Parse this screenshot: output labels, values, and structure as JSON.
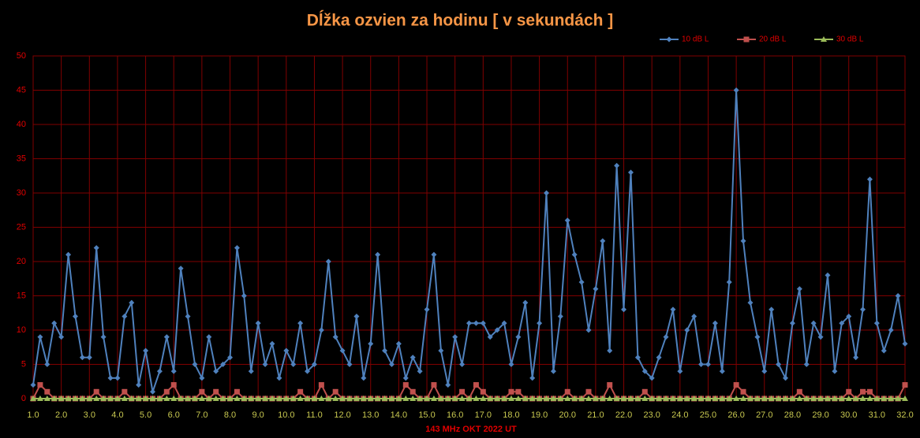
{
  "chart_data": {
    "type": "line",
    "title": "Dĺžka ozvien za hodinu [ v sekundách ]",
    "x_label": "143 MHz OKT  2022  UT",
    "legend": "top-right",
    "grid": true,
    "xlim": [
      1,
      32
    ],
    "ylim": [
      0,
      50
    ],
    "yticks": [
      0,
      5,
      10,
      15,
      20,
      25,
      30,
      35,
      40,
      45,
      50
    ],
    "xticks": [
      {
        "value": 1,
        "label": "1.0"
      },
      {
        "value": 2,
        "label": "2.0"
      },
      {
        "value": 3,
        "label": "3.0"
      },
      {
        "value": 4,
        "label": "4.0"
      },
      {
        "value": 5,
        "label": "5.0"
      },
      {
        "value": 6,
        "label": "6.0"
      },
      {
        "value": 7,
        "label": "7.0"
      },
      {
        "value": 8,
        "label": "8.0"
      },
      {
        "value": 9,
        "label": "9.0"
      },
      {
        "value": 10,
        "label": "10.0"
      },
      {
        "value": 11,
        "label": "11.0"
      },
      {
        "value": 12,
        "label": "12.0"
      },
      {
        "value": 13,
        "label": "13.0"
      },
      {
        "value": 14,
        "label": "14.0"
      },
      {
        "value": 15,
        "label": "15.0"
      },
      {
        "value": 16,
        "label": "16.0"
      },
      {
        "value": 17,
        "label": "17.0"
      },
      {
        "value": 18,
        "label": "18.0"
      },
      {
        "value": 19,
        "label": "19.0"
      },
      {
        "value": 20,
        "label": "20.0"
      },
      {
        "value": 21,
        "label": "21.0"
      },
      {
        "value": 22,
        "label": "22.0"
      },
      {
        "value": 23,
        "label": "23.0"
      },
      {
        "value": 24,
        "label": "24.0"
      },
      {
        "value": 25,
        "label": "25.0"
      },
      {
        "value": 26,
        "label": "26.0"
      },
      {
        "value": 27,
        "label": "27.0"
      },
      {
        "value": 28,
        "label": "28.0"
      },
      {
        "value": 29,
        "label": "29.0"
      },
      {
        "value": 30,
        "label": "30.0"
      },
      {
        "value": 31,
        "label": "31.0"
      },
      {
        "value": 32,
        "label": "32.0"
      }
    ],
    "x": [
      1,
      1.25,
      1.5,
      1.75,
      2,
      2.25,
      2.5,
      2.75,
      3,
      3.25,
      3.5,
      3.75,
      4,
      4.25,
      4.5,
      4.75,
      5,
      5.25,
      5.5,
      5.75,
      6,
      6.25,
      6.5,
      6.75,
      7,
      7.25,
      7.5,
      7.75,
      8,
      8.25,
      8.5,
      8.75,
      9,
      9.25,
      9.5,
      9.75,
      10,
      10.25,
      10.5,
      10.75,
      11,
      11.25,
      11.5,
      11.75,
      12,
      12.25,
      12.5,
      12.75,
      13,
      13.25,
      13.5,
      13.75,
      14,
      14.25,
      14.5,
      14.75,
      15,
      15.25,
      15.5,
      15.75,
      16,
      16.25,
      16.5,
      16.75,
      17,
      17.25,
      17.5,
      17.75,
      18,
      18.25,
      18.5,
      18.75,
      19,
      19.25,
      19.5,
      19.75,
      20,
      20.25,
      20.5,
      20.75,
      21,
      21.25,
      21.5,
      21.75,
      22,
      22.25,
      22.5,
      22.75,
      23,
      23.25,
      23.5,
      23.75,
      24,
      24.25,
      24.5,
      24.75,
      25,
      25.25,
      25.5,
      25.75,
      26,
      26.25,
      26.5,
      26.75,
      27,
      27.25,
      27.5,
      27.75,
      28,
      28.25,
      28.5,
      28.75,
      29,
      29.25,
      29.5,
      29.75,
      30,
      30.25,
      30.5,
      30.75,
      31,
      31.25,
      31.5,
      31.75,
      32
    ],
    "series": [
      {
        "name": "10 dB L",
        "color": "#4f81bd",
        "marker": "diamond",
        "values": [
          2,
          9,
          5,
          11,
          9,
          21,
          12,
          6,
          6,
          22,
          9,
          3,
          3,
          12,
          14,
          2,
          7,
          1,
          4,
          9,
          4,
          19,
          12,
          5,
          3,
          9,
          4,
          5,
          6,
          22,
          15,
          4,
          11,
          5,
          8,
          3,
          7,
          5,
          11,
          4,
          5,
          10,
          20,
          9,
          7,
          5,
          12,
          3,
          8,
          21,
          7,
          5,
          8,
          3,
          6,
          4,
          13,
          21,
          7,
          2,
          9,
          5,
          11,
          11,
          11,
          9,
          10,
          11,
          5,
          9,
          14,
          3,
          11,
          30,
          4,
          12,
          26,
          21,
          17,
          10,
          16,
          23,
          7,
          34,
          13,
          33,
          6,
          4,
          3,
          6,
          9,
          13,
          4,
          10,
          12,
          5,
          5,
          11,
          4,
          17,
          45,
          23,
          14,
          9,
          4,
          13,
          5,
          3,
          11,
          16,
          5,
          11,
          9,
          18,
          4,
          11,
          12,
          6,
          13,
          32,
          11,
          7,
          10,
          15,
          8
        ]
      },
      {
        "name": "20 dB L",
        "color": "#c0504d",
        "marker": "square",
        "values": [
          0,
          2,
          1,
          0,
          0,
          0,
          0,
          0,
          0,
          1,
          0,
          0,
          0,
          1,
          0,
          0,
          0,
          0,
          0,
          1,
          2,
          0,
          0,
          0,
          1,
          0,
          1,
          0,
          0,
          1,
          0,
          0,
          0,
          0,
          0,
          0,
          0,
          0,
          1,
          0,
          0,
          2,
          0,
          1,
          0,
          0,
          0,
          0,
          0,
          0,
          0,
          0,
          0,
          2,
          1,
          0,
          0,
          2,
          0,
          0,
          0,
          1,
          0,
          2,
          1,
          0,
          0,
          0,
          1,
          1,
          0,
          0,
          0,
          0,
          0,
          0,
          1,
          0,
          0,
          1,
          0,
          0,
          2,
          0,
          0,
          0,
          0,
          1,
          0,
          0,
          0,
          0,
          0,
          0,
          0,
          0,
          0,
          0,
          0,
          0,
          2,
          1,
          0,
          0,
          0,
          0,
          0,
          0,
          0,
          1,
          0,
          0,
          0,
          0,
          0,
          0,
          1,
          0,
          1,
          1,
          0,
          0,
          0,
          0,
          2
        ]
      },
      {
        "name": "30 dB L",
        "color": "#9bbb59",
        "marker": "triangle",
        "values": [
          0,
          0,
          0,
          0,
          0,
          0,
          0,
          0,
          0,
          0,
          0,
          0,
          0,
          0,
          0,
          0,
          0,
          0,
          0,
          0,
          0,
          0,
          0,
          0,
          0,
          0,
          0,
          0,
          0,
          0,
          0,
          0,
          0,
          0,
          0,
          0,
          0,
          0,
          0,
          0,
          0,
          0,
          0,
          0,
          0,
          0,
          0,
          0,
          0,
          0,
          0,
          0,
          0,
          0,
          0,
          0,
          0,
          0,
          0,
          0,
          0,
          0,
          0,
          0,
          0,
          0,
          0,
          0,
          0,
          0,
          0,
          0,
          0,
          0,
          0,
          0,
          0,
          0,
          0,
          0,
          0,
          0,
          0,
          0,
          0,
          0,
          0,
          0,
          0,
          0,
          0,
          0,
          0,
          0,
          0,
          0,
          0,
          0,
          0,
          0,
          0,
          0,
          0,
          0,
          0,
          0,
          0,
          0,
          0,
          0,
          0,
          0,
          0,
          0,
          0,
          0,
          0,
          0,
          0,
          0,
          0,
          0,
          0,
          0,
          0
        ]
      }
    ]
  }
}
